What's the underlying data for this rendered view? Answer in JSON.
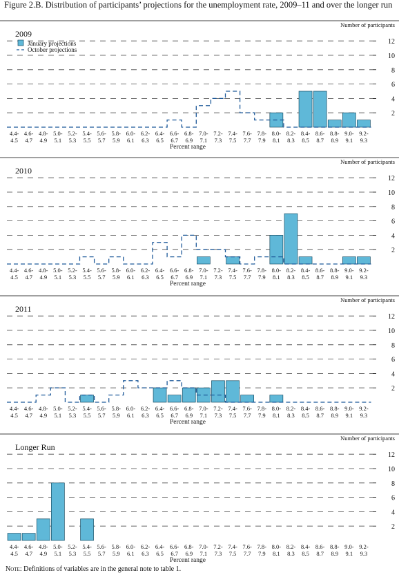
{
  "figure_title": "Figure 2.B. Distribution of participants’ projections for the unemployment rate, 2009–11 and over the longer run",
  "note_label": "Note:",
  "note_text": "Definitions of variables are in the general note to table 1.",
  "colors": {
    "bar_fill": "#5fb8d8",
    "bar_stroke": "#1a4f66",
    "dash": "#1f5a9a",
    "grid": "#444444"
  },
  "chart_data": [
    {
      "type": "bar",
      "title": "2009",
      "xlabel": "Percent range",
      "ylabel": "Number of participants",
      "ylim": [
        0,
        12
      ],
      "yticks": [
        2,
        4,
        6,
        8,
        10,
        12
      ],
      "legend": [
        "January projections",
        "October projections"
      ],
      "categories": [
        "4.4-4.5",
        "4.6-4.7",
        "4.8-4.9",
        "5.0-5.1",
        "5.2-5.3",
        "5.4-5.5",
        "5.6-5.7",
        "5.8-5.9",
        "6.0-6.1",
        "6.2-6.3",
        "6.4-6.5",
        "6.6-6.7",
        "6.8-6.9",
        "7.0-7.1",
        "7.2-7.3",
        "7.4-7.5",
        "7.6-7.7",
        "7.8-7.9",
        "8.0-8.1",
        "8.2-8.3",
        "8.4-8.5",
        "8.6-8.7",
        "8.8-8.9",
        "9.0-9.1",
        "9.2-9.3"
      ],
      "series": [
        {
          "name": "January projections",
          "values": [
            0,
            0,
            0,
            0,
            0,
            0,
            0,
            0,
            0,
            0,
            0,
            0,
            0,
            0,
            0,
            0,
            0,
            0,
            2,
            0,
            5,
            5,
            1,
            2,
            1
          ]
        },
        {
          "name": "October projections",
          "values": [
            0,
            0,
            0,
            0,
            0,
            0,
            0,
            0,
            0,
            0,
            0,
            1,
            0,
            3,
            4,
            5,
            2,
            1,
            1,
            0,
            0,
            0,
            0,
            0,
            0
          ]
        }
      ]
    },
    {
      "type": "bar",
      "title": "2010",
      "xlabel": "Percent range",
      "ylabel": "Number of participants",
      "ylim": [
        0,
        12
      ],
      "yticks": [
        2,
        4,
        6,
        8,
        10,
        12
      ],
      "categories": [
        "4.4-4.5",
        "4.6-4.7",
        "4.8-4.9",
        "5.0-5.1",
        "5.2-5.3",
        "5.4-5.5",
        "5.6-5.7",
        "5.8-5.9",
        "6.0-6.1",
        "6.2-6.3",
        "6.4-6.5",
        "6.6-6.7",
        "6.8-6.9",
        "7.0-7.1",
        "7.2-7.3",
        "7.4-7.5",
        "7.6-7.7",
        "7.8-7.9",
        "8.0-8.1",
        "8.2-8.3",
        "8.4-8.5",
        "8.6-8.7",
        "8.8-8.9",
        "9.0-9.1",
        "9.2-9.3"
      ],
      "series": [
        {
          "name": "January projections",
          "values": [
            0,
            0,
            0,
            0,
            0,
            0,
            0,
            0,
            0,
            0,
            0,
            0,
            0,
            1,
            0,
            1,
            0,
            0,
            4,
            7,
            1,
            0,
            0,
            1,
            1
          ]
        },
        {
          "name": "October projections",
          "values": [
            0,
            0,
            0,
            0,
            0,
            1,
            0,
            1,
            0,
            0,
            3,
            1,
            4,
            2,
            2,
            1,
            0,
            1,
            1,
            0,
            0,
            0,
            0,
            0,
            0
          ]
        }
      ]
    },
    {
      "type": "bar",
      "title": "2011",
      "xlabel": "Percent range",
      "ylabel": "Number of participants",
      "ylim": [
        0,
        12
      ],
      "yticks": [
        2,
        4,
        6,
        8,
        10,
        12
      ],
      "categories": [
        "4.4-4.5",
        "4.6-4.7",
        "4.8-4.9",
        "5.0-5.1",
        "5.2-5.3",
        "5.4-5.5",
        "5.6-5.7",
        "5.8-5.9",
        "6.0-6.1",
        "6.2-6.3",
        "6.4-6.5",
        "6.6-6.7",
        "6.8-6.9",
        "7.0-7.1",
        "7.2-7.3",
        "7.4-7.5",
        "7.6-7.7",
        "7.8-7.9",
        "8.0-8.1",
        "8.2-8.3",
        "8.4-8.5",
        "8.6-8.7",
        "8.8-8.9",
        "9.0-9.1",
        "9.2-9.3"
      ],
      "series": [
        {
          "name": "January projections",
          "values": [
            0,
            0,
            0,
            0,
            0,
            1,
            0,
            0,
            0,
            0,
            2,
            1,
            2,
            2,
            3,
            3,
            1,
            0,
            1,
            0,
            0,
            0,
            0,
            0,
            0
          ]
        },
        {
          "name": "October projections",
          "values": [
            0,
            0,
            1,
            2,
            0,
            1,
            0,
            1,
            3,
            2,
            2,
            3,
            2,
            1,
            1,
            0,
            0,
            0,
            0,
            0,
            0,
            0,
            0,
            0,
            0
          ]
        }
      ]
    },
    {
      "type": "bar",
      "title": "Longer Run",
      "xlabel": "Percent range",
      "ylabel": "Number of participants",
      "ylim": [
        0,
        12
      ],
      "yticks": [
        2,
        4,
        6,
        8,
        10,
        12
      ],
      "categories": [
        "4.4-4.5",
        "4.6-4.7",
        "4.8-4.9",
        "5.0-5.1",
        "5.2-5.3",
        "5.4-5.5",
        "5.6-5.7",
        "5.8-5.9",
        "6.0-6.1",
        "6.2-6.3",
        "6.4-6.5",
        "6.6-6.7",
        "6.8-6.9",
        "7.0-7.1",
        "7.2-7.3",
        "7.4-7.5",
        "7.6-7.7",
        "7.8-7.9",
        "8.0-8.1",
        "8.2-8.3",
        "8.4-8.5",
        "8.6-8.7",
        "8.8-8.9",
        "9.0-9.1",
        "9.2-9.3"
      ],
      "series": [
        {
          "name": "January projections",
          "values": [
            1,
            1,
            3,
            8,
            0,
            3,
            0,
            0,
            0,
            0,
            0,
            0,
            0,
            0,
            0,
            0,
            0,
            0,
            0,
            0,
            0,
            0,
            0,
            0,
            0
          ]
        },
        {
          "name": "October projections",
          "values": [
            1,
            1,
            3,
            8,
            0,
            3,
            0,
            0,
            0,
            0,
            0,
            0,
            0,
            0,
            0,
            0,
            0,
            0,
            0,
            0,
            0,
            0,
            0,
            0,
            0
          ]
        }
      ]
    }
  ]
}
